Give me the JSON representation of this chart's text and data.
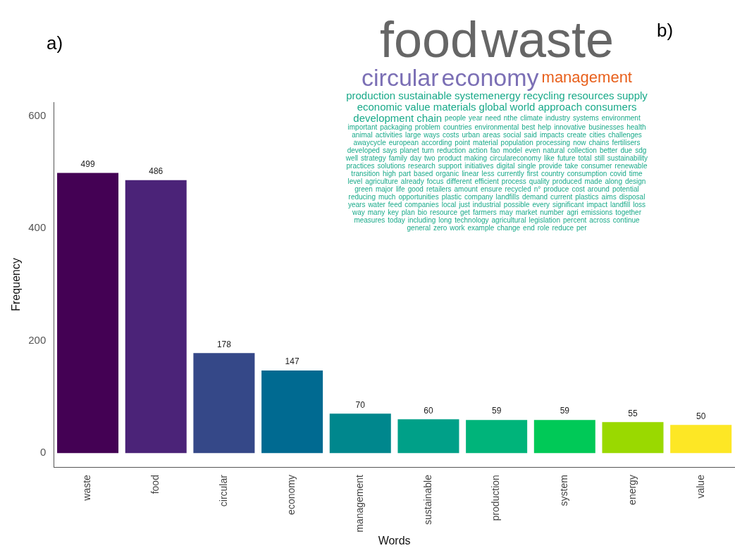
{
  "chart_data": [
    {
      "type": "bar",
      "title": "a)",
      "xlabel": "Words",
      "ylabel": "Frequency",
      "categories": [
        "waste",
        "food",
        "circular",
        "economy",
        "management",
        "sustainable",
        "production",
        "system",
        "energy",
        "value"
      ],
      "values": [
        499,
        486,
        178,
        147,
        70,
        60,
        59,
        59,
        55,
        50
      ],
      "colors": [
        "#440154",
        "#4b2378",
        "#354888",
        "#006a91",
        "#00878d",
        "#00a088",
        "#00b47a",
        "#00c957",
        "#9ad900",
        "#fde725"
      ],
      "ylim": [
        -25,
        625
      ],
      "yticks": [
        0,
        200,
        400,
        600
      ],
      "grid": false,
      "legend": false,
      "data_labels": true
    },
    {
      "type": "other",
      "title": "b)",
      "categories": [
        "food",
        "waste",
        "circular",
        "economy",
        "management",
        "production",
        "sustainable",
        "systemenergy",
        "recycling",
        "resources",
        "supply",
        "economic",
        "value",
        "materials",
        "global",
        "world",
        "approach",
        "consumers",
        "development",
        "chain",
        "people",
        "year",
        "need",
        "nthe",
        "climate",
        "industry",
        "systems",
        "environment",
        "important",
        "packaging",
        "problem",
        "countries",
        "environmental",
        "best",
        "help",
        "innovative",
        "businesses",
        "health",
        "animal",
        "activities",
        "large",
        "ways",
        "costs",
        "urban",
        "areas",
        "social",
        "said",
        "impacts",
        "create",
        "cities",
        "challenges",
        "awaycycle",
        "european",
        "according",
        "point",
        "material",
        "population",
        "processing",
        "now",
        "chains",
        "fertilisers",
        "developed",
        "says",
        "planet",
        "turn",
        "reduction",
        "action",
        "fao",
        "model",
        "even",
        "natural",
        "collection",
        "better",
        "due",
        "sdg",
        "well",
        "strategy",
        "family",
        "day",
        "two",
        "product",
        "making",
        "circulareconomy",
        "like",
        "future",
        "total",
        "still",
        "sustainability",
        "practices",
        "solutions",
        "research",
        "support",
        "initiatives",
        "digital",
        "single",
        "provide",
        "take",
        "consumer",
        "renewable",
        "transition",
        "high",
        "part",
        "based",
        "organic",
        "linear",
        "less",
        "currently",
        "first",
        "country",
        "consumption",
        "covid",
        "time",
        "level",
        "agriculture",
        "already",
        "focus",
        "different",
        "efficient",
        "process",
        "quality",
        "produced",
        "made",
        "along",
        "design",
        "green",
        "major",
        "life",
        "good",
        "retailers",
        "amount",
        "ensure",
        "recycled",
        "n°",
        "produce",
        "cost",
        "around",
        "potential",
        "reducing",
        "much",
        "opportunities",
        "plastic",
        "company",
        "landfills",
        "demand",
        "current",
        "plastics",
        "aims",
        "disposal",
        "years",
        "water",
        "feed",
        "companies",
        "local",
        "just",
        "industrial",
        "possible",
        "every",
        "significant",
        "impact",
        "landfill",
        "loss",
        "way",
        "many",
        "key",
        "plan",
        "bio",
        "resource",
        "get",
        "farmers",
        "may",
        "market",
        "number",
        "agri",
        "emissions",
        "together",
        "measures",
        "today",
        "including",
        "long",
        "technology",
        "agricultural",
        "legislation",
        "percent",
        "across",
        "continue",
        "general",
        "zero",
        "work",
        "example",
        "change",
        "end",
        "role",
        "reduce",
        "per"
      ],
      "colors": [
        "#666666",
        "#666666",
        "#7b6fb5",
        "#7b6fb5",
        "#e8601c"
      ],
      "color": "#1aaa8a"
    }
  ]
}
